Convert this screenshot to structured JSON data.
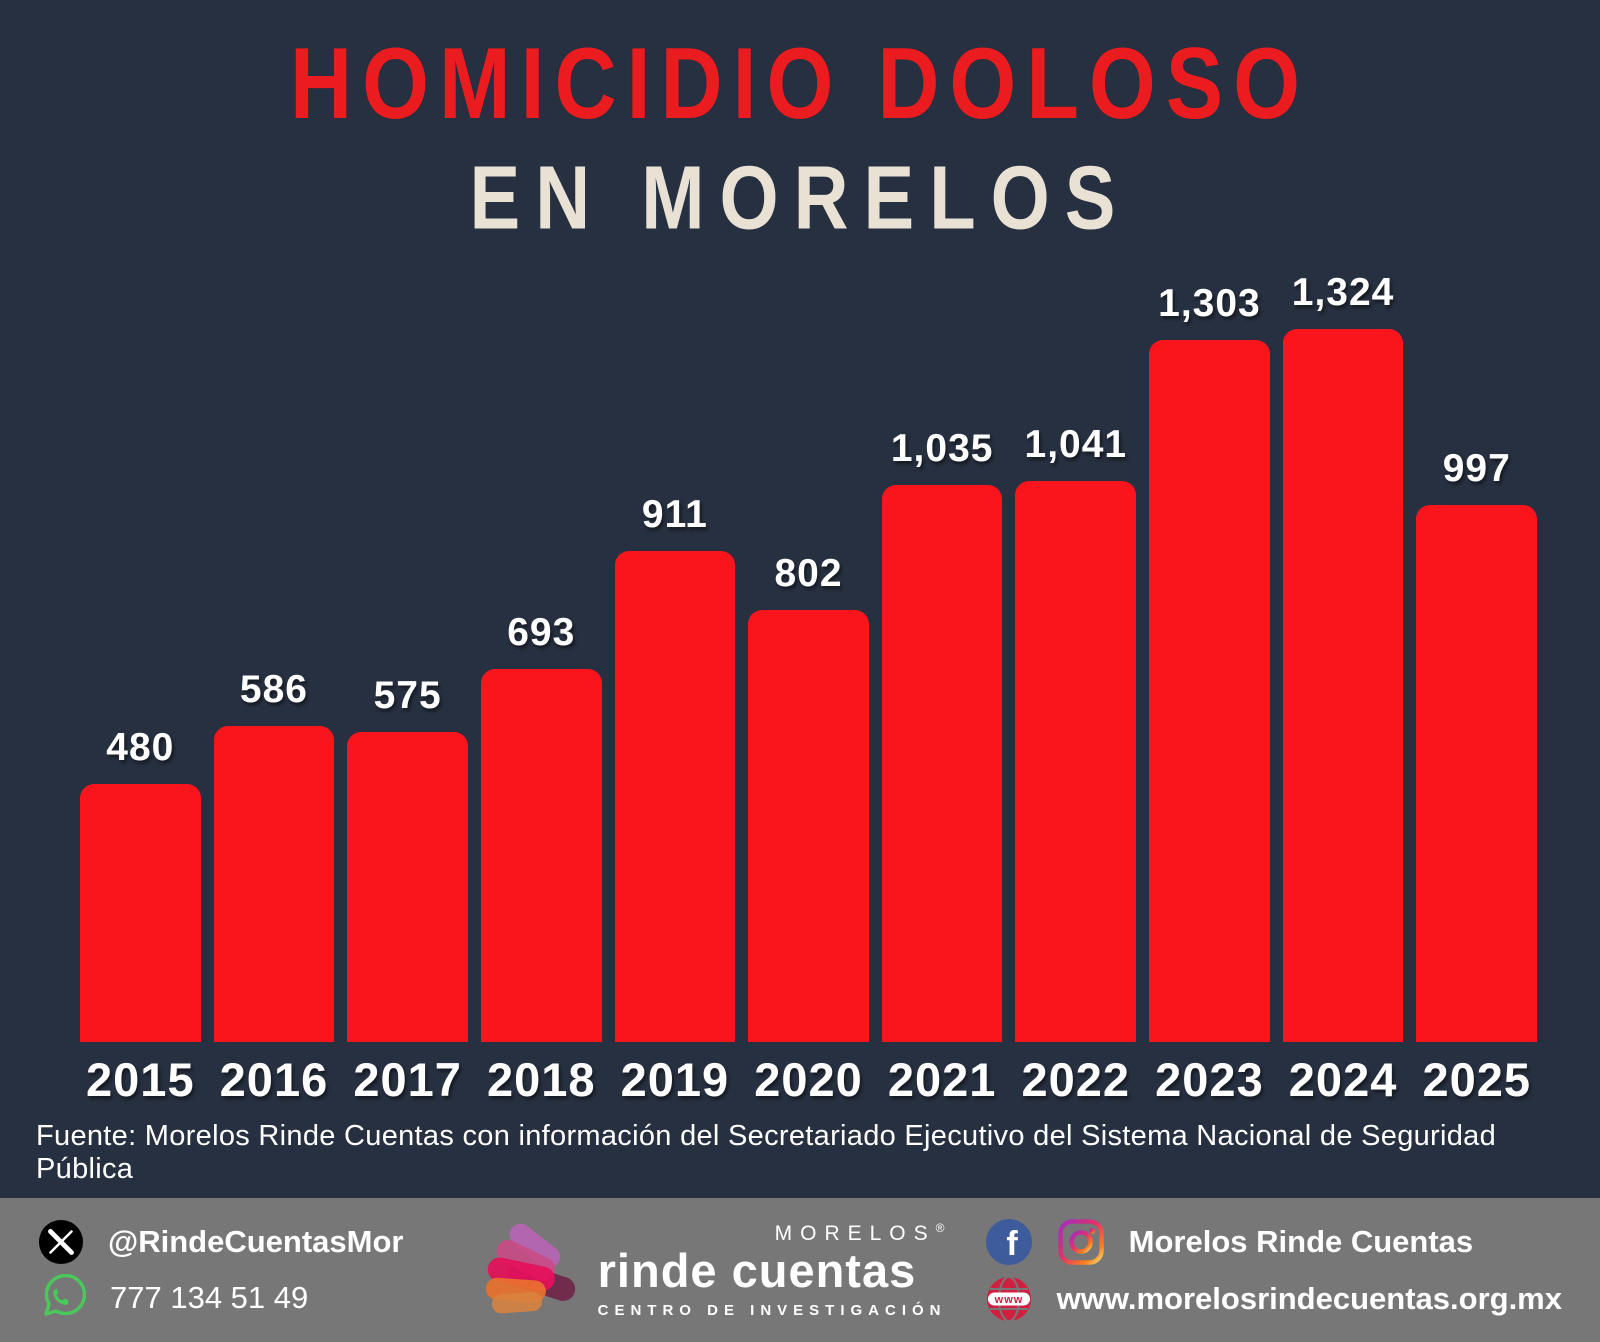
{
  "title": {
    "line1": "HOMICIDIO DOLOSO",
    "line2": "EN MORELOS"
  },
  "chart_data": {
    "type": "bar",
    "title": "Homicidio doloso en Morelos",
    "categories": [
      "2015",
      "2016",
      "2017",
      "2018",
      "2019",
      "2020",
      "2021",
      "2022",
      "2023",
      "2024",
      "2025"
    ],
    "values": [
      480,
      586,
      575,
      693,
      911,
      802,
      1035,
      1041,
      1303,
      1324,
      997
    ],
    "value_labels": [
      "480",
      "586",
      "575",
      "693",
      "911",
      "802",
      "1,035",
      "1,041",
      "1,303",
      "1,324",
      "997"
    ],
    "xlabel": "",
    "ylabel": "",
    "ylim": [
      0,
      1400
    ],
    "grid": false,
    "legend": false,
    "bar_color": "#fa151c",
    "background": "#273040",
    "label_color": "#ffffff"
  },
  "source": {
    "text": "Fuente: Morelos Rinde Cuentas con información del Secretariado Ejecutivo del Sistema Nacional de Seguridad Pública"
  },
  "footer": {
    "twitter_handle": "@RindeCuentasMor",
    "phone": "777 134 51 49",
    "logo": {
      "top": "MORELOS",
      "reg": "®",
      "main": "rinde cuentas",
      "sub": "CENTRO DE INVESTIGACIÓN"
    },
    "social_name": "Morelos Rinde Cuentas",
    "website": "www.morelosrindecuentas.org.mx",
    "icon_colors": {
      "x_badge": "#000000",
      "whatsapp_green": "#4ac85a",
      "facebook_blue": "#3e5c9b",
      "globe_red": "#d02040",
      "footer_gray": "#787778"
    }
  }
}
